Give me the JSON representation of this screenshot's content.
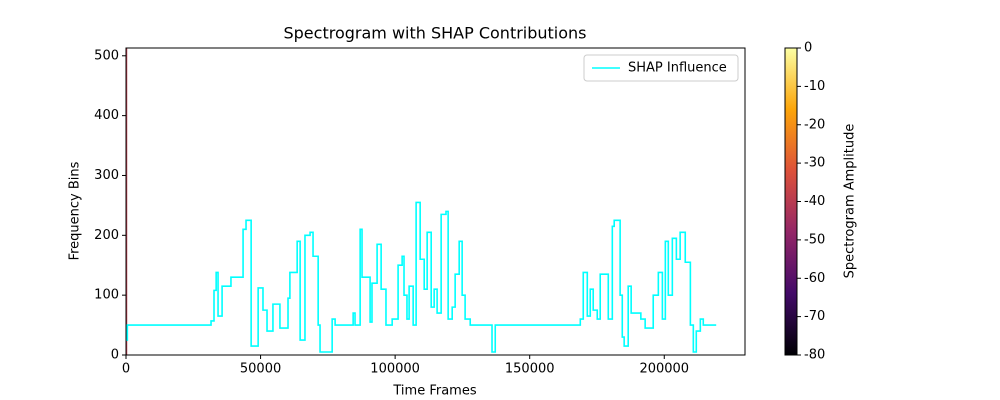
{
  "chart_data": {
    "type": "line",
    "title": "Spectrogram with SHAP Contributions",
    "xlabel": "Time Frames",
    "ylabel": "Frequency Bins",
    "xlim": [
      0,
      230000
    ],
    "ylim": [
      0,
      513
    ],
    "xticks": [
      0,
      50000,
      100000,
      150000,
      200000
    ],
    "yticks": [
      0,
      100,
      200,
      300,
      400,
      500
    ],
    "drawstyle": "steps-post",
    "legend": "upper right",
    "x": [
      0,
      500,
      31600,
      32700,
      33500,
      34200,
      35700,
      39000,
      43500,
      44600,
      46500,
      49100,
      50900,
      52400,
      54600,
      57200,
      60200,
      60900,
      63600,
      64700,
      66500,
      68400,
      69500,
      71400,
      72100,
      75800,
      76600,
      77700,
      83300,
      84400,
      85100,
      87000,
      87700,
      90700,
      91400,
      93300,
      94800,
      96600,
      98900,
      101100,
      102600,
      103300,
      104400,
      105200,
      106700,
      107800,
      109300,
      110800,
      111900,
      113400,
      114500,
      115600,
      117100,
      118900,
      119700,
      121200,
      122300,
      123800,
      124900,
      126000,
      127900,
      135300,
      136000,
      137200,
      166900,
      168800,
      169900,
      171400,
      172500,
      173600,
      175100,
      176200,
      179200,
      180700,
      181400,
      183600,
      184400,
      185100,
      186600,
      187700,
      189600,
      191300,
      192900,
      195900,
      197800,
      199300,
      200400,
      201500,
      203000,
      204500,
      205900,
      207800,
      209700,
      210800,
      211900,
      213400,
      214500,
      219300
    ],
    "series": [
      {
        "name": "SHAP Influence",
        "color": "#00ffff",
        "values": [
          25,
          50,
          57,
          108,
          138,
          65,
          115,
          130,
          210,
          225,
          15,
          112,
          75,
          40,
          85,
          45,
          95,
          138,
          190,
          25,
          200,
          205,
          165,
          50,
          5,
          5,
          60,
          50,
          50,
          70,
          50,
          210,
          130,
          55,
          120,
          185,
          110,
          50,
          60,
          150,
          165,
          100,
          60,
          115,
          50,
          255,
          160,
          110,
          205,
          80,
          110,
          70,
          235,
          240,
          60,
          80,
          135,
          190,
          100,
          60,
          50,
          50,
          5,
          50,
          50,
          60,
          138,
          65,
          110,
          75,
          60,
          135,
          60,
          215,
          225,
          100,
          30,
          15,
          115,
          70,
          70,
          60,
          45,
          100,
          138,
          60,
          190,
          100,
          195,
          160,
          205,
          155,
          50,
          5,
          40,
          60,
          50,
          50
        ]
      }
    ],
    "colorbar": {
      "label": "Spectrogram Amplitude",
      "lim": [
        -80,
        0
      ],
      "ticks": [
        -80,
        -70,
        -60,
        -50,
        -40,
        -30,
        -20,
        -10,
        0
      ],
      "colors": [
        "#000004",
        "#420a68",
        "#932667",
        "#dd513a",
        "#fca50a",
        "#fcffa4"
      ]
    }
  }
}
